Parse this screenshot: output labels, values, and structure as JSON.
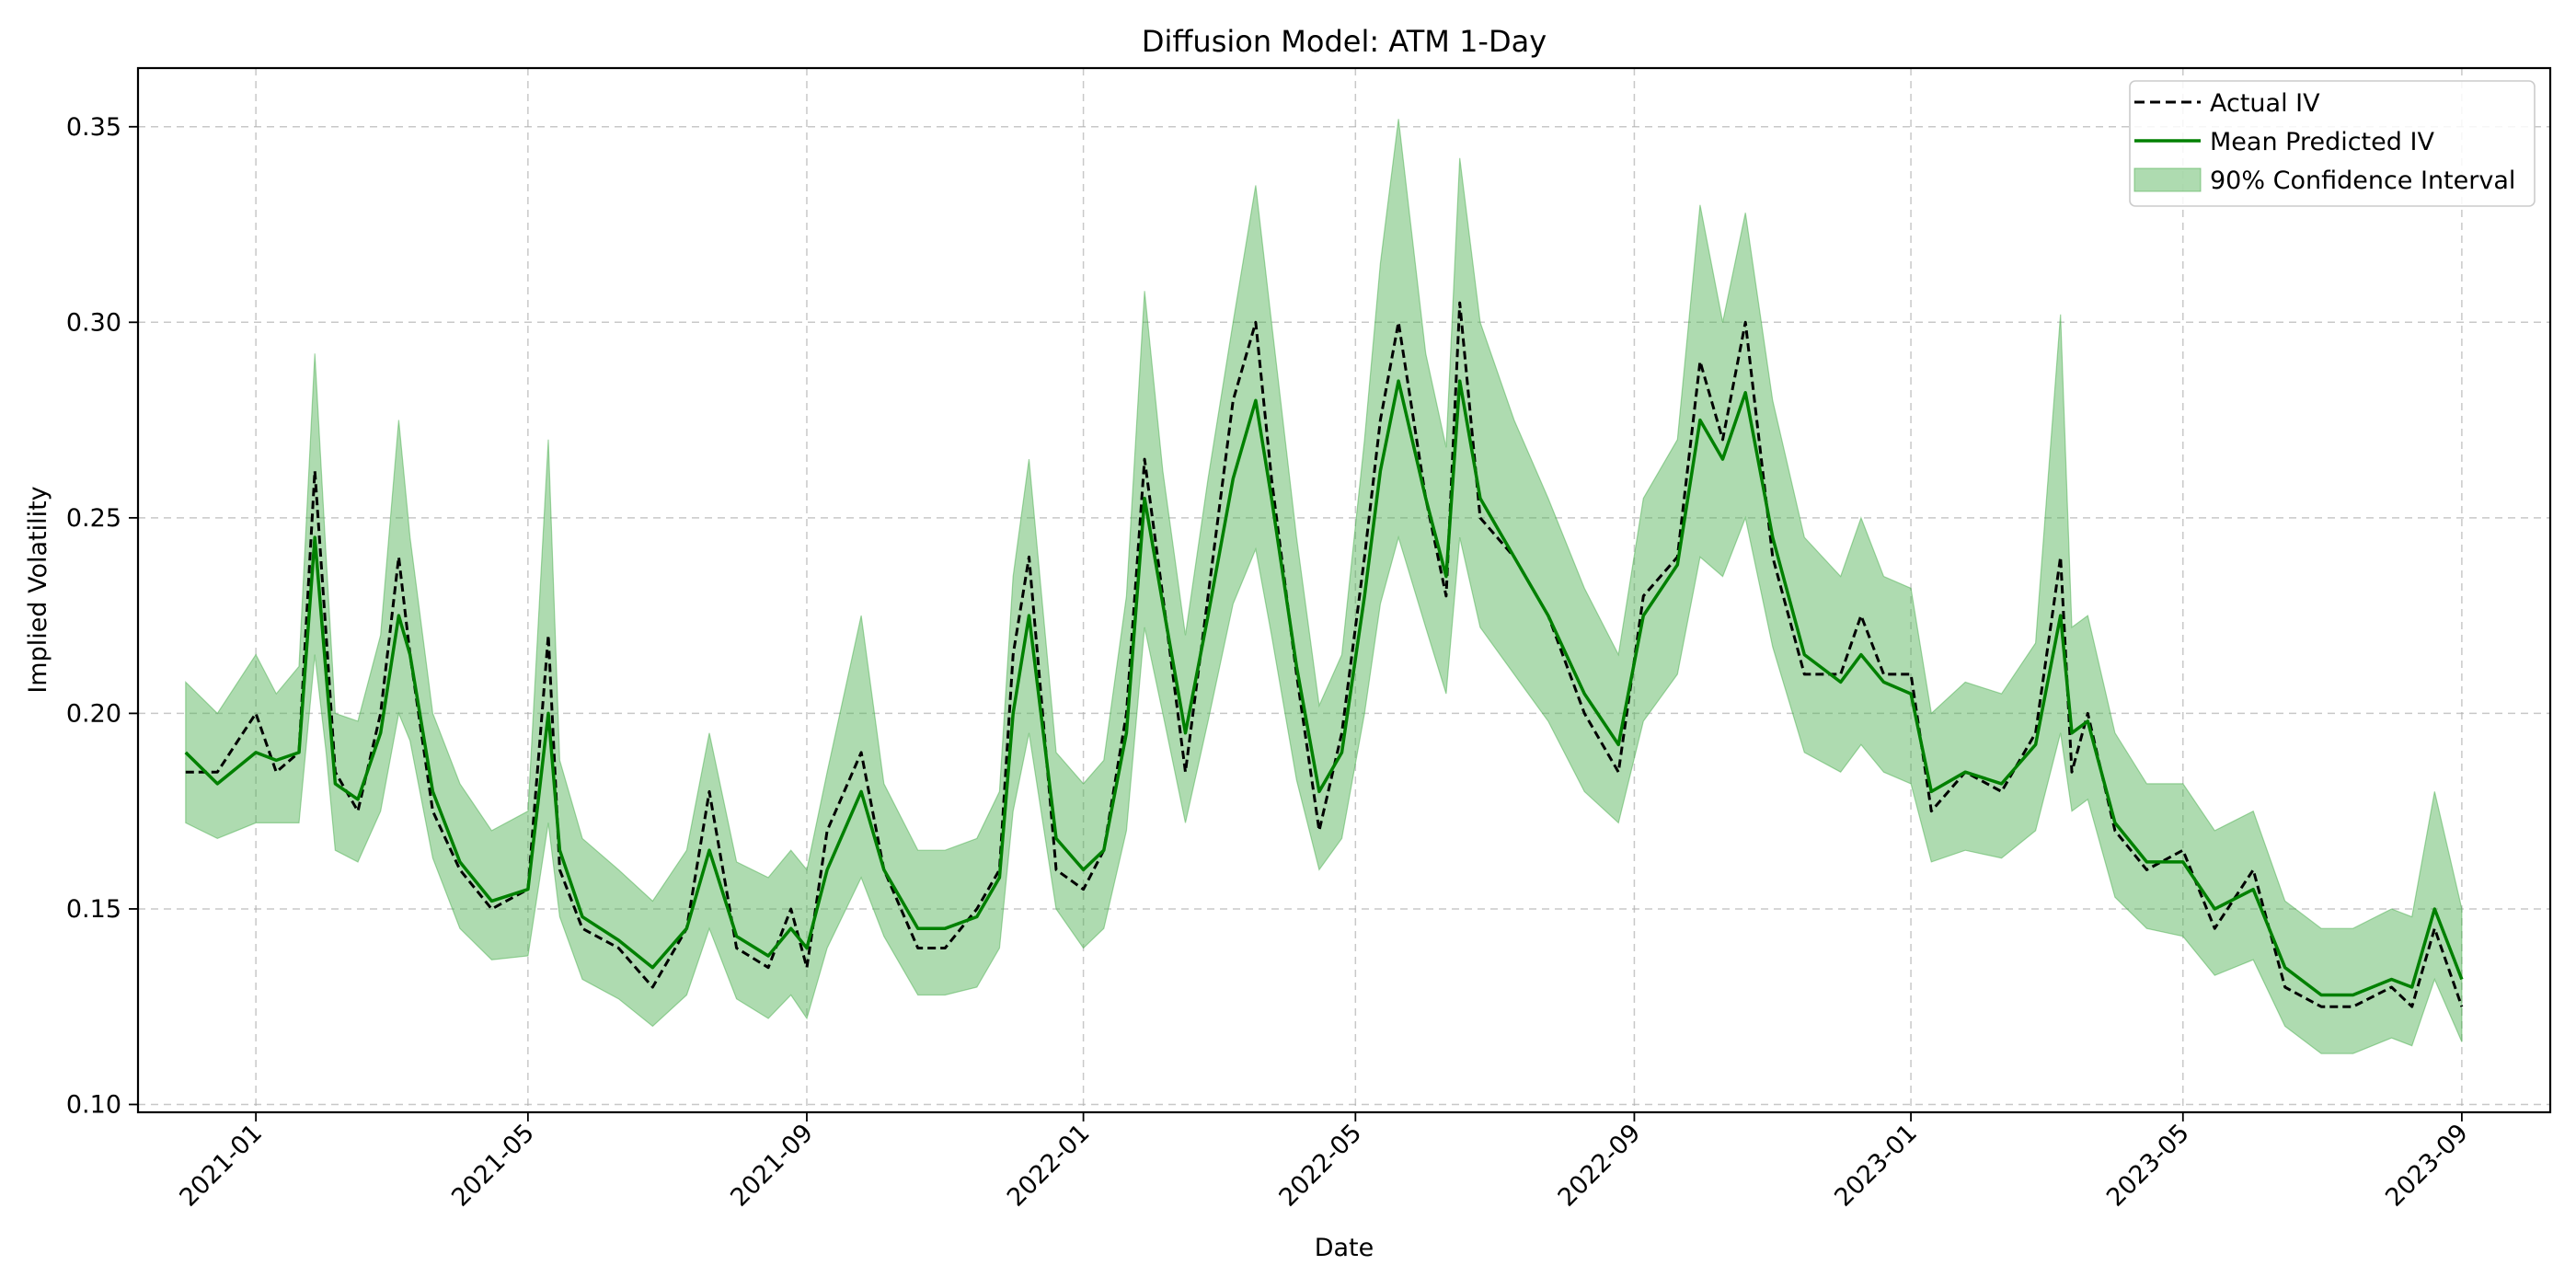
{
  "chart_data": {
    "type": "line",
    "title": "Diffusion Model: ATM 1-Day",
    "xlabel": "Date",
    "ylabel": "Implied Volatility",
    "xlim": [
      "2020-11-10",
      "2023-10-10"
    ],
    "ylim": [
      0.098,
      0.365
    ],
    "x_ticks": [
      "2021-01",
      "2021-05",
      "2021-09",
      "2022-01",
      "2022-05",
      "2022-09",
      "2023-01",
      "2023-05",
      "2023-09"
    ],
    "y_ticks": [
      "0.10",
      "0.15",
      "0.20",
      "0.25",
      "0.30",
      "0.35"
    ],
    "grid": true,
    "legend_position": "top-right",
    "legend": [
      "Actual IV",
      "Mean Predicted IV",
      "90% Confidence Interval"
    ],
    "colors": {
      "actual": "#000000",
      "predicted": "#008000",
      "band": "#4caf50"
    },
    "x": [
      "2020-12-01",
      "2020-12-15",
      "2021-01-01",
      "2021-01-10",
      "2021-01-20",
      "2021-01-27",
      "2021-02-01",
      "2021-02-05",
      "2021-02-15",
      "2021-02-25",
      "2021-03-05",
      "2021-03-10",
      "2021-03-20",
      "2021-04-01",
      "2021-04-15",
      "2021-05-01",
      "2021-05-10",
      "2021-05-15",
      "2021-05-25",
      "2021-06-10",
      "2021-06-25",
      "2021-07-10",
      "2021-07-20",
      "2021-08-01",
      "2021-08-15",
      "2021-08-25",
      "2021-09-01",
      "2021-09-10",
      "2021-09-25",
      "2021-10-05",
      "2021-10-20",
      "2021-11-01",
      "2021-11-15",
      "2021-11-25",
      "2021-12-01",
      "2021-12-08",
      "2021-12-20",
      "2022-01-01",
      "2022-01-10",
      "2022-01-20",
      "2022-01-28",
      "2022-02-05",
      "2022-02-15",
      "2022-02-25",
      "2022-03-08",
      "2022-03-18",
      "2022-03-25",
      "2022-04-05",
      "2022-04-15",
      "2022-04-25",
      "2022-05-05",
      "2022-05-12",
      "2022-05-20",
      "2022-06-01",
      "2022-06-10",
      "2022-06-16",
      "2022-06-25",
      "2022-07-10",
      "2022-07-25",
      "2022-08-10",
      "2022-08-25",
      "2022-09-05",
      "2022-09-20",
      "2022-09-30",
      "2022-10-10",
      "2022-10-20",
      "2022-11-01",
      "2022-11-15",
      "2022-12-01",
      "2022-12-10",
      "2022-12-20",
      "2023-01-01",
      "2023-01-10",
      "2023-01-25",
      "2023-02-10",
      "2023-02-25",
      "2023-03-08",
      "2023-03-13",
      "2023-03-20",
      "2023-04-01",
      "2023-04-15",
      "2023-05-01",
      "2023-05-15",
      "2023-06-01",
      "2023-06-15",
      "2023-07-01",
      "2023-07-15",
      "2023-08-01",
      "2023-08-10",
      "2023-08-20",
      "2023-09-01"
    ],
    "series": [
      {
        "name": "Actual IV",
        "values": [
          0.185,
          0.185,
          0.2,
          0.185,
          0.19,
          0.262,
          0.22,
          0.185,
          0.175,
          0.2,
          0.24,
          0.215,
          0.175,
          0.16,
          0.15,
          0.155,
          0.22,
          0.16,
          0.145,
          0.14,
          0.13,
          0.145,
          0.18,
          0.14,
          0.135,
          0.15,
          0.135,
          0.17,
          0.19,
          0.16,
          0.14,
          0.14,
          0.15,
          0.16,
          0.215,
          0.24,
          0.16,
          0.155,
          0.165,
          0.2,
          0.265,
          0.23,
          0.185,
          0.23,
          0.28,
          0.3,
          0.26,
          0.21,
          0.17,
          0.195,
          0.24,
          0.275,
          0.3,
          0.255,
          0.23,
          0.305,
          0.25,
          0.24,
          0.225,
          0.2,
          0.185,
          0.23,
          0.24,
          0.29,
          0.27,
          0.3,
          0.24,
          0.21,
          0.21,
          0.225,
          0.21,
          0.21,
          0.175,
          0.185,
          0.18,
          0.195,
          0.24,
          0.185,
          0.2,
          0.17,
          0.16,
          0.165,
          0.145,
          0.16,
          0.13,
          0.125,
          0.125,
          0.13,
          0.125,
          0.145,
          0.125
        ]
      },
      {
        "name": "Mean Predicted IV",
        "values": [
          0.19,
          0.182,
          0.19,
          0.188,
          0.19,
          0.245,
          0.21,
          0.182,
          0.178,
          0.195,
          0.225,
          0.215,
          0.18,
          0.162,
          0.152,
          0.155,
          0.2,
          0.165,
          0.148,
          0.142,
          0.135,
          0.145,
          0.165,
          0.143,
          0.138,
          0.145,
          0.14,
          0.16,
          0.18,
          0.16,
          0.145,
          0.145,
          0.148,
          0.158,
          0.2,
          0.225,
          0.168,
          0.16,
          0.165,
          0.195,
          0.255,
          0.228,
          0.195,
          0.225,
          0.26,
          0.28,
          0.255,
          0.212,
          0.18,
          0.19,
          0.23,
          0.262,
          0.285,
          0.255,
          0.235,
          0.285,
          0.255,
          0.24,
          0.225,
          0.205,
          0.192,
          0.225,
          0.238,
          0.275,
          0.265,
          0.282,
          0.245,
          0.215,
          0.208,
          0.215,
          0.208,
          0.205,
          0.18,
          0.185,
          0.182,
          0.192,
          0.225,
          0.195,
          0.198,
          0.172,
          0.162,
          0.162,
          0.15,
          0.155,
          0.135,
          0.128,
          0.128,
          0.132,
          0.13,
          0.15,
          0.132
        ]
      }
    ],
    "band": {
      "name": "90% Confidence Interval",
      "lower": [
        0.172,
        0.168,
        0.172,
        0.172,
        0.172,
        0.215,
        0.19,
        0.165,
        0.162,
        0.175,
        0.2,
        0.193,
        0.163,
        0.145,
        0.137,
        0.138,
        0.172,
        0.148,
        0.132,
        0.127,
        0.12,
        0.128,
        0.145,
        0.127,
        0.122,
        0.128,
        0.122,
        0.14,
        0.158,
        0.143,
        0.128,
        0.128,
        0.13,
        0.14,
        0.175,
        0.195,
        0.15,
        0.14,
        0.145,
        0.17,
        0.222,
        0.2,
        0.172,
        0.198,
        0.228,
        0.242,
        0.22,
        0.183,
        0.16,
        0.168,
        0.2,
        0.228,
        0.245,
        0.222,
        0.205,
        0.245,
        0.222,
        0.21,
        0.198,
        0.18,
        0.172,
        0.198,
        0.21,
        0.24,
        0.235,
        0.25,
        0.217,
        0.19,
        0.185,
        0.192,
        0.185,
        0.182,
        0.162,
        0.165,
        0.163,
        0.17,
        0.195,
        0.175,
        0.178,
        0.153,
        0.145,
        0.143,
        0.133,
        0.137,
        0.12,
        0.113,
        0.113,
        0.117,
        0.115,
        0.132,
        0.116
      ],
      "upper": [
        0.208,
        0.2,
        0.215,
        0.205,
        0.212,
        0.292,
        0.24,
        0.2,
        0.198,
        0.22,
        0.275,
        0.245,
        0.2,
        0.182,
        0.17,
        0.175,
        0.27,
        0.188,
        0.168,
        0.16,
        0.152,
        0.165,
        0.195,
        0.162,
        0.158,
        0.165,
        0.16,
        0.185,
        0.225,
        0.182,
        0.165,
        0.165,
        0.168,
        0.18,
        0.235,
        0.265,
        0.19,
        0.182,
        0.188,
        0.23,
        0.308,
        0.262,
        0.22,
        0.26,
        0.3,
        0.335,
        0.3,
        0.245,
        0.202,
        0.215,
        0.27,
        0.315,
        0.352,
        0.292,
        0.268,
        0.342,
        0.3,
        0.275,
        0.255,
        0.232,
        0.215,
        0.255,
        0.27,
        0.33,
        0.3,
        0.328,
        0.28,
        0.245,
        0.235,
        0.25,
        0.235,
        0.232,
        0.2,
        0.208,
        0.205,
        0.218,
        0.302,
        0.222,
        0.225,
        0.195,
        0.182,
        0.182,
        0.17,
        0.175,
        0.152,
        0.145,
        0.145,
        0.15,
        0.148,
        0.18,
        0.15
      ]
    }
  }
}
